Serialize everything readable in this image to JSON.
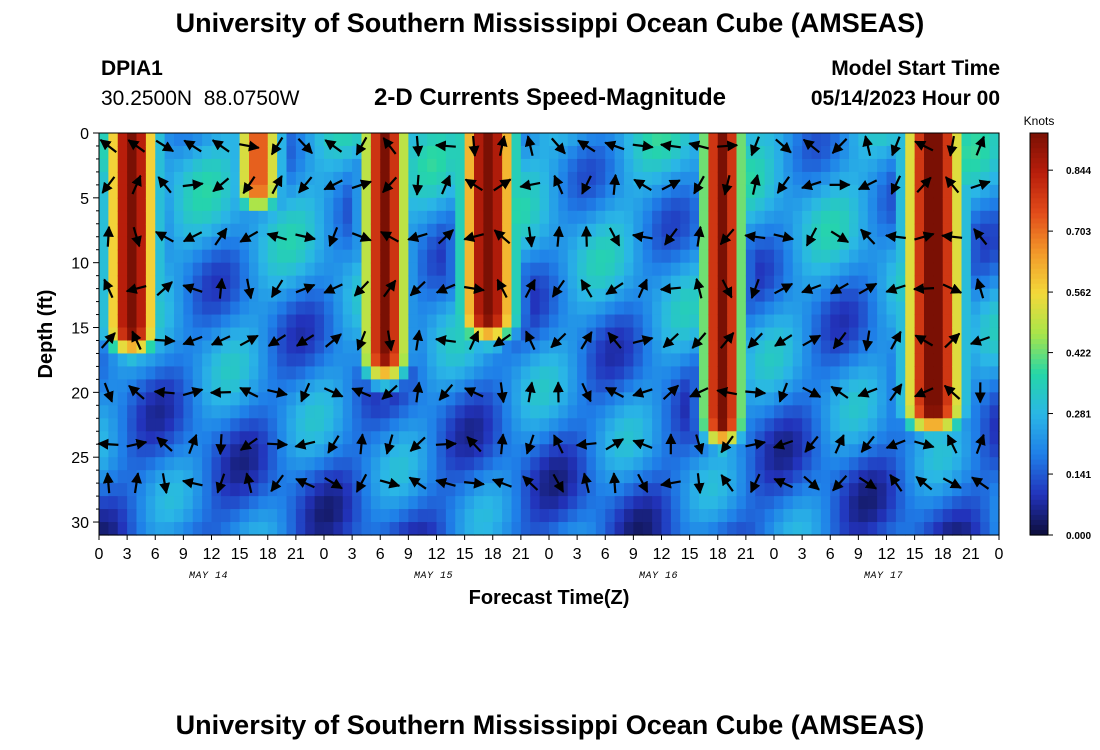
{
  "titles": {
    "main": "University of Southern Mississippi Ocean Cube (AMSEAS)",
    "bottom_repeat": "University of Southern Mississippi Ocean Cube (AMSEAS)"
  },
  "station": {
    "id": "DPIA1",
    "coords": "30.2500N  88.0750W"
  },
  "plot_title": "2-D Currents Speed-Magnitude",
  "model": {
    "label": "Model Start Time",
    "value": "05/14/2023 Hour 00"
  },
  "chart_data": {
    "type": "heatmap",
    "title": "2-D Currents Speed-Magnitude",
    "xlabel": "Forecast Time(Z)",
    "ylabel": "Depth (ft)",
    "x_range_hours": [
      0,
      96
    ],
    "y_range_ft": [
      0,
      31
    ],
    "y_reversed": true,
    "x_tick_labels": [
      "0",
      "3",
      "6",
      "9",
      "12",
      "15",
      "18",
      "21",
      "0",
      "3",
      "6",
      "9",
      "12",
      "15",
      "18",
      "21",
      "0",
      "3",
      "6",
      "9",
      "12",
      "15",
      "18",
      "21",
      "0",
      "3",
      "6",
      "9",
      "12",
      "15",
      "18",
      "21",
      "0"
    ],
    "day_labels": [
      "MAY 14",
      "MAY 15",
      "MAY 16",
      "MAY 17"
    ],
    "y_ticks": [
      0,
      5,
      10,
      15,
      20,
      25,
      30
    ],
    "colorbar": {
      "unit": "Knots",
      "min": 0.0,
      "max": 0.93,
      "tick_values": [
        0.0,
        0.141,
        0.281,
        0.422,
        0.562,
        0.703,
        0.844
      ],
      "tick_labels": [
        "0.000",
        "0.141",
        "0.281",
        "0.422",
        "0.562",
        "0.703",
        "0.844"
      ],
      "colors": [
        "#0d0d3a",
        "#2233bb",
        "#1f7fe8",
        "#2ab6e6",
        "#25d6a8",
        "#a8e54a",
        "#f3d93a",
        "#f39a2a",
        "#e24c1a",
        "#b81e0b",
        "#7a1004"
      ]
    },
    "strong_current_bands": [
      {
        "center_hour": 3.5,
        "width_hours": 2.8,
        "max_depth_ft": 15,
        "peak_knots": 0.9
      },
      {
        "center_hour": 17,
        "width_hours": 2.5,
        "max_depth_ft": 4,
        "peak_knots": 0.7
      },
      {
        "center_hour": 30.5,
        "width_hours": 2.5,
        "max_depth_ft": 17,
        "peak_knots": 0.88
      },
      {
        "center_hour": 41.5,
        "width_hours": 3.0,
        "max_depth_ft": 14,
        "peak_knots": 0.9
      },
      {
        "center_hour": 66.5,
        "width_hours": 2.2,
        "max_depth_ft": 22,
        "peak_knots": 0.92
      },
      {
        "center_hour": 89.0,
        "width_hours": 3.2,
        "max_depth_ft": 21,
        "peak_knots": 0.93
      }
    ],
    "vector_grid": {
      "x_step_hours": 3,
      "depths_ft": [
        1,
        4,
        8,
        12,
        16,
        20,
        24,
        27
      ]
    }
  }
}
